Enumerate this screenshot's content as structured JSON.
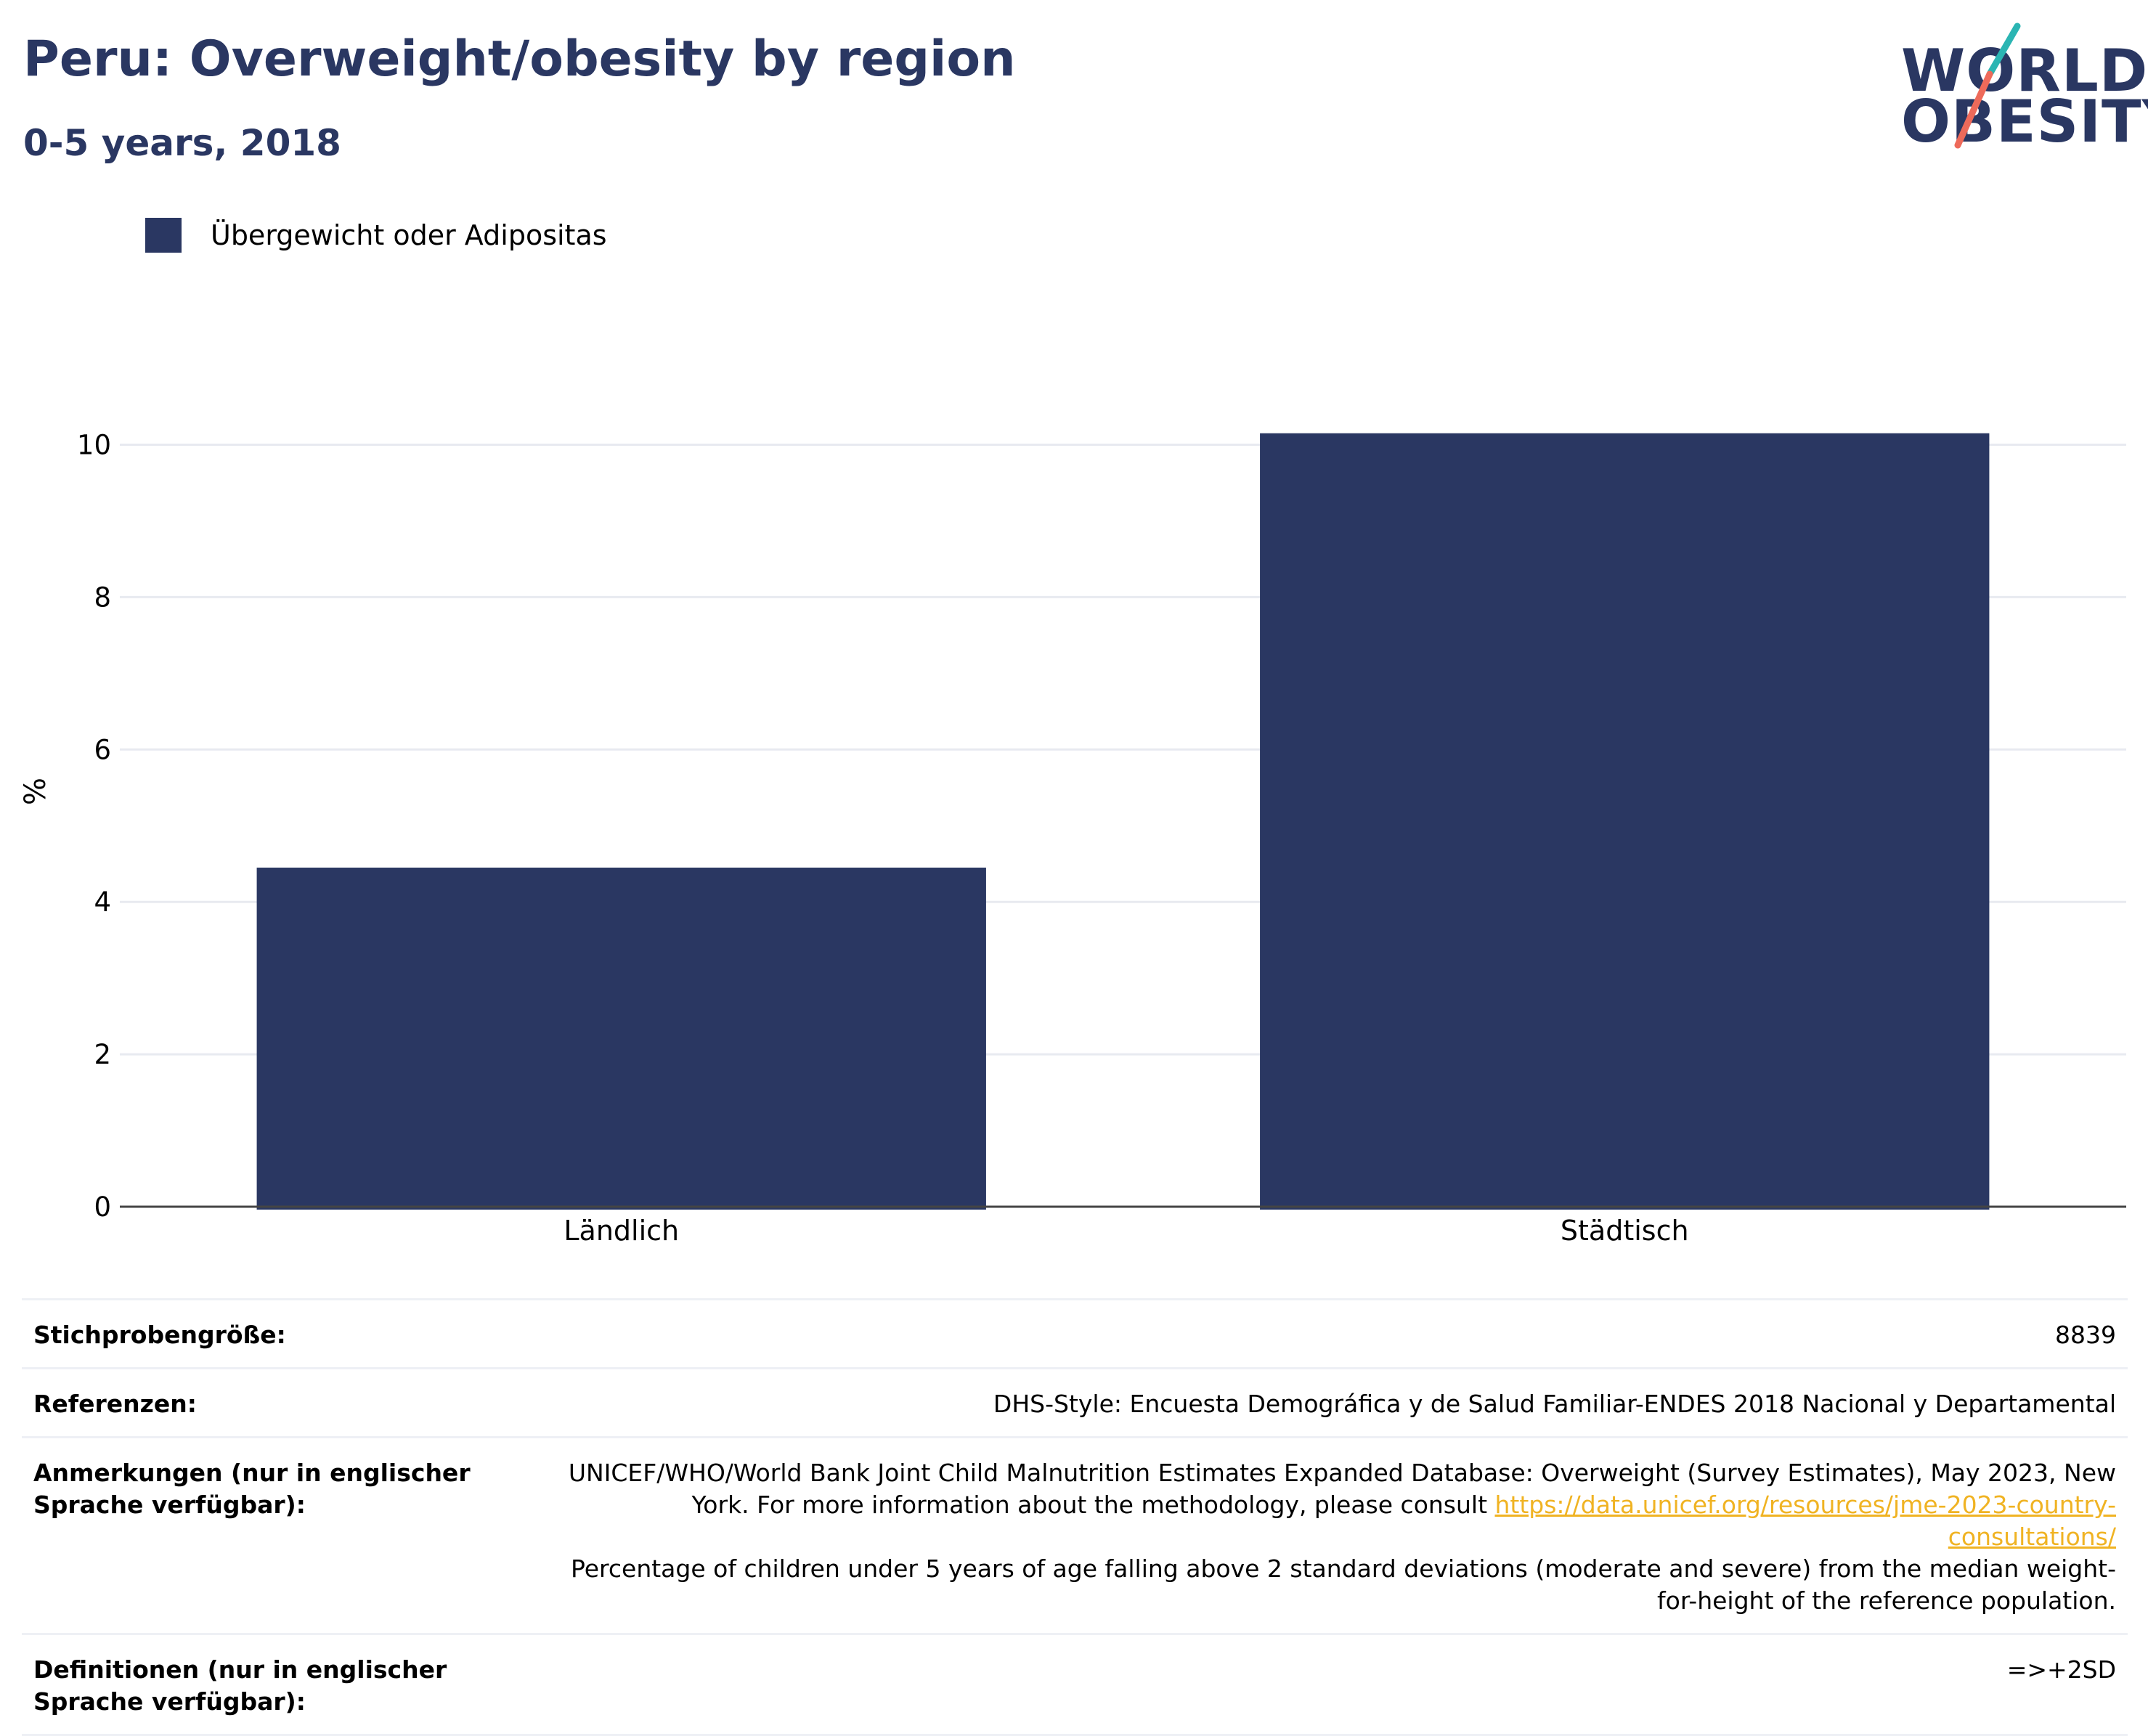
{
  "header": {
    "title": "Peru: Overweight/obesity by region",
    "subtitle": "0-5 years, 2018"
  },
  "logo": {
    "line1": "WORLD",
    "line2": "OBESITY"
  },
  "colors": {
    "bar": "#2a3762",
    "title": "#2a3762",
    "logo_teal": "#2bb5b3",
    "logo_coral": "#ee6a5a",
    "link": "#f0b323"
  },
  "chart_data": {
    "type": "bar",
    "categories": [
      "Ländlich",
      "Städtisch"
    ],
    "series": [
      {
        "name": "Übergewicht oder Adipositas",
        "values": [
          4.45,
          10.15
        ]
      }
    ],
    "xlabel": "",
    "ylabel": "%",
    "ylim": [
      0,
      10.5
    ],
    "yticks": [
      0,
      2,
      4,
      6,
      8,
      10
    ],
    "grid": true,
    "legend": "top-left"
  },
  "info": {
    "sample_label": "Stichprobengröße:",
    "sample_value": "8839",
    "references_label": "Referenzen:",
    "references_value": "DHS-Style: Encuesta Demográfica y de Salud Familiar-ENDES 2018 Nacional y Departamental",
    "notes_label": "Anmerkungen (nur in englischer Sprache verfügbar):",
    "notes_text1": "UNICEF/WHO/World Bank Joint Child Malnutrition Estimates Expanded Database: Overweight (Survey Estimates), May 2023, New York. For more information about the methodology, please consult ",
    "notes_link": "https://data.unicef.org/resources/jme-2023-country-consultations/",
    "notes_text2": "Percentage of children under 5 years of age falling above 2 standard deviations (moderate and severe) from the median weight-for-height of the reference population.",
    "definitions_label": "Definitionen (nur in englischer Sprache verfügbar):",
    "definitions_value": "=>+2SD"
  }
}
